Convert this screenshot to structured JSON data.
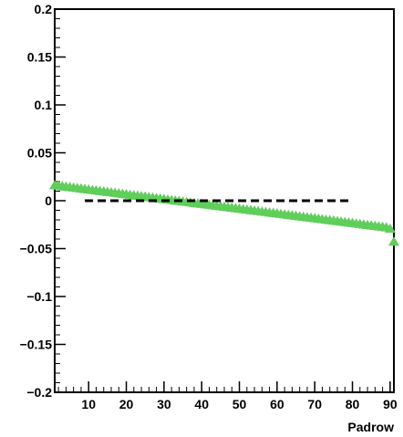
{
  "chart_data": {
    "type": "scatter",
    "title": "",
    "xlabel": "Padrow",
    "ylabel": "",
    "xlim": [
      1,
      91
    ],
    "ylim": [
      -0.2,
      0.2
    ],
    "x_ticks": [
      10,
      20,
      30,
      40,
      50,
      60,
      70,
      80,
      90
    ],
    "x_tick_labels": [
      "10",
      "20",
      "30",
      "40",
      "50",
      "60",
      "70",
      "80",
      "90"
    ],
    "y_ticks": [
      -0.2,
      -0.15,
      -0.1,
      -0.05,
      0,
      0.05,
      0.1,
      0.15,
      0.2
    ],
    "y_tick_labels": [
      "−0.2",
      "−0.15",
      "−0.1",
      "−0.05",
      "0",
      "0.05",
      "0.1",
      "0.15",
      "0.2"
    ],
    "grid": false,
    "legend": "none",
    "series": [
      {
        "marker": "triangle",
        "color": "#5fce5a",
        "x": [
          1,
          2,
          3,
          4,
          5,
          6,
          7,
          8,
          9,
          10,
          11,
          12,
          13,
          14,
          15,
          16,
          17,
          18,
          19,
          20,
          21,
          22,
          23,
          24,
          25,
          26,
          27,
          28,
          29,
          30,
          31,
          32,
          33,
          34,
          35,
          36,
          37,
          38,
          39,
          40,
          41,
          42,
          43,
          44,
          45,
          46,
          47,
          48,
          49,
          50,
          51,
          52,
          53,
          54,
          55,
          56,
          57,
          58,
          59,
          60,
          61,
          62,
          63,
          64,
          65,
          66,
          67,
          68,
          69,
          70,
          71,
          72,
          73,
          74,
          75,
          76,
          77,
          78,
          79,
          80,
          81,
          82,
          83,
          84,
          85,
          86,
          87,
          88,
          89,
          90,
          91
        ],
        "y": [
          0.016,
          0.0155,
          0.015,
          0.0145,
          0.014,
          0.0135,
          0.013,
          0.0125,
          0.012,
          0.0115,
          0.011,
          0.0105,
          0.01,
          0.0095,
          0.009,
          0.0085,
          0.008,
          0.0075,
          0.007,
          0.0065,
          0.006,
          0.0055,
          0.005,
          0.0045,
          0.004,
          0.0035,
          0.003,
          0.0025,
          0.002,
          0.0015,
          0.001,
          0.0005,
          0.0,
          -0.0005,
          -0.001,
          -0.0015,
          -0.002,
          -0.0025,
          -0.003,
          -0.0035,
          -0.004,
          -0.0045,
          -0.005,
          -0.0055,
          -0.006,
          -0.0065,
          -0.007,
          -0.0075,
          -0.008,
          -0.0085,
          -0.009,
          -0.0095,
          -0.01,
          -0.0105,
          -0.011,
          -0.0115,
          -0.012,
          -0.0125,
          -0.013,
          -0.0135,
          -0.014,
          -0.0145,
          -0.015,
          -0.0155,
          -0.016,
          -0.0165,
          -0.017,
          -0.0175,
          -0.018,
          -0.0185,
          -0.019,
          -0.0195,
          -0.02,
          -0.0205,
          -0.021,
          -0.0215,
          -0.022,
          -0.0225,
          -0.023,
          -0.0235,
          -0.024,
          -0.0245,
          -0.025,
          -0.0255,
          -0.026,
          -0.0265,
          -0.027,
          -0.0275,
          -0.028,
          -0.0295,
          -0.043
        ]
      },
      {
        "style": "dashed",
        "color": "#000000",
        "x": [
          9,
          80
        ],
        "y": [
          0,
          0
        ]
      }
    ]
  }
}
